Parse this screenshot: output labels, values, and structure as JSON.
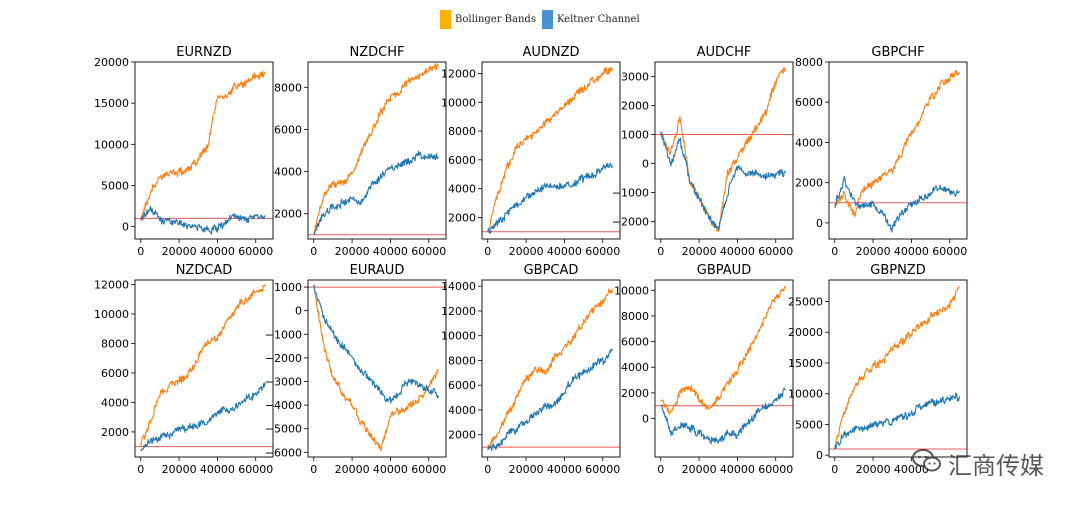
{
  "legend": {
    "items": [
      {
        "label": "Bollinger Bands",
        "color": "#ffb000"
      },
      {
        "label": "Keltner Channel",
        "color": "#4a8fd0"
      }
    ]
  },
  "watermark": {
    "text": "汇商传媒",
    "icon": "wechat-icon"
  },
  "colors": {
    "bollinger": "#ff7f0e",
    "keltner": "#1f77b4",
    "baseline": "#e8595a"
  },
  "chart_data": [
    {
      "type": "line",
      "title": "EURNZD",
      "ylim": [
        -1500,
        20000
      ],
      "yticks": [
        0,
        5000,
        10000,
        15000,
        20000
      ],
      "xticks": [
        0,
        20000,
        40000,
        60000
      ],
      "xlim": [
        -3000,
        69000
      ],
      "baseline": 1000,
      "x": [
        0,
        5000,
        10000,
        15000,
        20000,
        25000,
        30000,
        35000,
        40000,
        45000,
        50000,
        55000,
        60000,
        65000
      ],
      "series": [
        {
          "name": "Bollinger Bands",
          "values": [
            800,
            4000,
            6200,
            6800,
            6500,
            7000,
            8000,
            10000,
            16000,
            16000,
            17200,
            17600,
            18100,
            18800
          ]
        },
        {
          "name": "Keltner Channel",
          "values": [
            800,
            2100,
            800,
            700,
            500,
            200,
            -200,
            -300,
            -400,
            900,
            1200,
            1000,
            1100,
            1300
          ]
        }
      ]
    },
    {
      "type": "line",
      "title": "NZDCHF",
      "ylim": [
        800,
        9200
      ],
      "yticks": [
        2000,
        4000,
        6000,
        8000
      ],
      "xticks": [
        0,
        20000,
        40000,
        60000
      ],
      "xlim": [
        -3000,
        69000
      ],
      "baseline": 1000,
      "x": [
        0,
        5000,
        10000,
        15000,
        20000,
        25000,
        30000,
        35000,
        40000,
        45000,
        50000,
        55000,
        60000,
        65000
      ],
      "series": [
        {
          "name": "Bollinger Bands",
          "values": [
            1000,
            2800,
            3400,
            3400,
            3900,
            5000,
            5800,
            6800,
            7500,
            7900,
            8300,
            8600,
            8800,
            9000
          ]
        },
        {
          "name": "Keltner Channel",
          "values": [
            1000,
            2000,
            2300,
            2500,
            2700,
            2600,
            3300,
            3800,
            4200,
            4400,
            4500,
            4800,
            4700,
            4600
          ]
        }
      ]
    },
    {
      "type": "line",
      "title": "AUDNZD",
      "ylim": [
        500,
        12800
      ],
      "yticks": [
        2000,
        4000,
        6000,
        8000,
        10000,
        12000
      ],
      "xticks": [
        0,
        20000,
        40000,
        60000
      ],
      "xlim": [
        -3000,
        69000
      ],
      "baseline": 1000,
      "x": [
        0,
        5000,
        10000,
        15000,
        20000,
        25000,
        30000,
        35000,
        40000,
        45000,
        50000,
        55000,
        60000,
        65000
      ],
      "series": [
        {
          "name": "Bollinger Bands",
          "values": [
            1000,
            3500,
            5500,
            6800,
            7500,
            8000,
            8600,
            9200,
            9800,
            10500,
            11000,
            11500,
            12000,
            12200
          ]
        },
        {
          "name": "Keltner Channel",
          "values": [
            1000,
            1600,
            2200,
            2800,
            3300,
            3800,
            4300,
            4100,
            4200,
            4400,
            4700,
            5000,
            5400,
            5600
          ]
        }
      ]
    },
    {
      "type": "line",
      "title": "AUDCHF",
      "ylim": [
        -2600,
        3500
      ],
      "yticks": [
        -2000,
        -1000,
        0,
        1000,
        2000,
        3000
      ],
      "xticks": [
        0,
        20000,
        40000,
        60000
      ],
      "xlim": [
        -3000,
        69000
      ],
      "baseline": 1000,
      "x": [
        0,
        5000,
        10000,
        15000,
        20000,
        25000,
        30000,
        35000,
        40000,
        45000,
        50000,
        55000,
        60000,
        65000
      ],
      "series": [
        {
          "name": "Bollinger Bands",
          "values": [
            1100,
            300,
            1600,
            -600,
            -1200,
            -1800,
            -2300,
            -300,
            200,
            800,
            1200,
            1800,
            2800,
            3300
          ]
        },
        {
          "name": "Keltner Channel",
          "values": [
            1100,
            0,
            800,
            -500,
            -1200,
            -1800,
            -2300,
            -1000,
            -100,
            -400,
            -300,
            -500,
            -400,
            -300
          ]
        }
      ]
    },
    {
      "type": "line",
      "title": "GBPCHF",
      "ylim": [
        -800,
        8000
      ],
      "yticks": [
        0,
        2000,
        4000,
        6000,
        8000
      ],
      "xticks": [
        0,
        20000,
        40000,
        60000
      ],
      "xlim": [
        -3000,
        69000
      ],
      "baseline": 1000,
      "x": [
        0,
        5000,
        10000,
        15000,
        20000,
        25000,
        30000,
        35000,
        40000,
        45000,
        50000,
        55000,
        60000,
        65000
      ],
      "series": [
        {
          "name": "Bollinger Bands",
          "values": [
            800,
            1500,
            300,
            1800,
            2000,
            2400,
            2500,
            3500,
            4500,
            5200,
            6200,
            6800,
            7200,
            7500
          ]
        },
        {
          "name": "Keltner Channel",
          "values": [
            800,
            2200,
            1000,
            800,
            1000,
            500,
            -300,
            500,
            1000,
            1200,
            1500,
            1800,
            1500,
            1600
          ]
        }
      ]
    },
    {
      "type": "line",
      "title": "NZDCAD",
      "ylim": [
        300,
        12300
      ],
      "yticks": [
        2000,
        4000,
        6000,
        8000,
        10000,
        12000
      ],
      "xticks": [
        0,
        20000,
        40000,
        60000
      ],
      "xlim": [
        -3000,
        69000
      ],
      "baseline": 1000,
      "x": [
        0,
        5000,
        10000,
        15000,
        20000,
        25000,
        30000,
        35000,
        40000,
        45000,
        50000,
        55000,
        60000,
        65000
      ],
      "series": [
        {
          "name": "Bollinger Bands",
          "values": [
            1000,
            2800,
            4500,
            5200,
            5500,
            6000,
            7000,
            8200,
            8500,
            9500,
            10500,
            11000,
            11500,
            12000
          ]
        },
        {
          "name": "Keltner Channel",
          "values": [
            700,
            1300,
            1500,
            1800,
            2200,
            2300,
            2500,
            2800,
            3200,
            3500,
            3800,
            4200,
            4600,
            5200
          ]
        }
      ]
    },
    {
      "type": "line",
      "title": "EURAUD",
      "ylim": [
        -6200,
        1300
      ],
      "yticks": [
        -6000,
        -5000,
        -4000,
        -3000,
        -2000,
        -1000,
        0,
        1000
      ],
      "xticks": [
        0,
        20000,
        40000,
        60000
      ],
      "xlim": [
        -3000,
        69000
      ],
      "baseline": 1000,
      "x": [
        0,
        5000,
        10000,
        15000,
        20000,
        25000,
        30000,
        35000,
        40000,
        45000,
        50000,
        55000,
        60000,
        65000
      ],
      "series": [
        {
          "name": "Bollinger Bands",
          "values": [
            1100,
            -1500,
            -2800,
            -3500,
            -4000,
            -4800,
            -5300,
            -5800,
            -4500,
            -4200,
            -4000,
            -3800,
            -3200,
            -2500
          ]
        },
        {
          "name": "Keltner Channel",
          "values": [
            1100,
            -300,
            -1000,
            -1500,
            -2000,
            -2500,
            -3000,
            -3500,
            -3800,
            -3400,
            -3000,
            -3200,
            -3300,
            -3600
          ]
        }
      ]
    },
    {
      "type": "line",
      "title": "GBPCAD",
      "ylim": [
        200,
        14500
      ],
      "yticks": [
        2000,
        4000,
        6000,
        8000,
        10000,
        12000,
        14000
      ],
      "xticks": [
        0,
        20000,
        40000,
        60000
      ],
      "xlim": [
        -3000,
        69000
      ],
      "baseline": 1000,
      "x": [
        0,
        5000,
        10000,
        15000,
        20000,
        25000,
        30000,
        35000,
        40000,
        45000,
        50000,
        55000,
        60000,
        65000
      ],
      "series": [
        {
          "name": "Bollinger Bands",
          "values": [
            1000,
            2000,
            3500,
            5000,
            6500,
            7500,
            7000,
            8200,
            9000,
            10000,
            11000,
            12000,
            12800,
            13800
          ]
        },
        {
          "name": "Keltner Channel",
          "values": [
            800,
            1200,
            2000,
            2500,
            3000,
            3800,
            4200,
            4500,
            5500,
            6500,
            7000,
            7500,
            8000,
            8800
          ]
        }
      ]
    },
    {
      "type": "line",
      "title": "GBPAUD",
      "ylim": [
        -3000,
        10800
      ],
      "yticks": [
        0,
        2000,
        4000,
        6000,
        8000,
        10000
      ],
      "xticks": [
        0,
        20000,
        40000,
        60000
      ],
      "xlim": [
        -3000,
        69000
      ],
      "baseline": 1000,
      "x": [
        0,
        5000,
        10000,
        15000,
        20000,
        25000,
        30000,
        35000,
        40000,
        45000,
        50000,
        55000,
        60000,
        65000
      ],
      "series": [
        {
          "name": "Bollinger Bands",
          "values": [
            1300,
            600,
            2000,
            2500,
            1500,
            800,
            1500,
            2800,
            3800,
            5000,
            6500,
            8000,
            9500,
            10200
          ]
        },
        {
          "name": "Keltner Channel",
          "values": [
            1000,
            -1000,
            -500,
            -800,
            -1200,
            -1500,
            -2000,
            -1000,
            -1300,
            -500,
            500,
            1000,
            1500,
            2300
          ]
        }
      ]
    },
    {
      "type": "line",
      "title": "GBPNZD",
      "ylim": [
        -300,
        28500
      ],
      "yticks": [
        0,
        5000,
        10000,
        15000,
        20000,
        25000
      ],
      "xticks": [
        0,
        20000,
        40000
      ],
      "xlim": [
        -3000,
        69000
      ],
      "baseline": 1000,
      "x": [
        0,
        5000,
        10000,
        15000,
        20000,
        25000,
        30000,
        35000,
        40000,
        45000,
        50000,
        55000,
        60000,
        65000
      ],
      "series": [
        {
          "name": "Bollinger Bands",
          "values": [
            1000,
            7000,
            11000,
            13000,
            14500,
            15500,
            17000,
            18500,
            20000,
            21000,
            22500,
            23500,
            24500,
            27500
          ]
        },
        {
          "name": "Keltner Channel",
          "values": [
            1000,
            3500,
            4000,
            4200,
            4800,
            5000,
            5500,
            6000,
            7000,
            7800,
            8500,
            9000,
            9200,
            9600
          ]
        }
      ]
    }
  ]
}
